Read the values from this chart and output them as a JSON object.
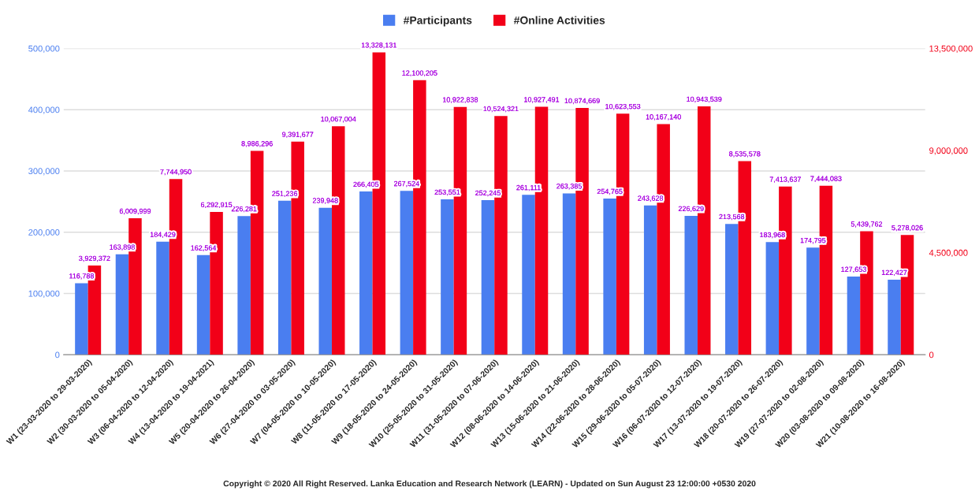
{
  "chart_data": {
    "type": "bar",
    "categories": [
      "W1 (23-03-2020 to 29-03-2020)",
      "W2 (30-03-2020 to 05-04-2020)",
      "W3 (06-04-2020 to 12-04-2020)",
      "W4 (13-04-2020 to 19-04-2021)",
      "W5 (20-04-2020 to 26-04-2020)",
      "W6 (27-04-2020 to 03-05-2020)",
      "W7 (04-05-2020 to 10-05-2020)",
      "W8 (11-05-2020 to 17-05-2020)",
      "W9 (18-05-2020 to 24-05-2020)",
      "W10 (25-05-2020 to 31-05-2020)",
      "W11 (31-05-2020 to 07-06-2020)",
      "W12 (08-06-2020 to 14-06-2020)",
      "W13 (15-06-2020 to 21-06-2020)",
      "W14 (22-06-2020 to 28-06-2020)",
      "W15 (29-06-2020 to 05-07-2020)",
      "W16 (06-07-2020 to 12-07-2020)",
      "W17 (13-07-2020 to 19-07-2020)",
      "W18 (20-07-2020 to 26-07-2020)",
      "W19 (27-07-2020 to 02-08-2020)",
      "W20 (03-08-2020 to 09-08-2020)",
      "W21 (10-08-2020 to 16-08-2020)"
    ],
    "series": [
      {
        "name": "#Participants",
        "color": "#4a7ef0",
        "values": [
          116788,
          163898,
          184429,
          162564,
          226281,
          251236,
          239948,
          266405,
          267524,
          253551,
          252245,
          261111,
          263385,
          254765,
          243628,
          226629,
          213568,
          183968,
          174795,
          127653,
          122427
        ],
        "value_labels": [
          "116,788",
          "163,898",
          "184,429",
          "162,564",
          "226,281",
          "251,236",
          "239,948",
          "266,405",
          "267,524",
          "253,551",
          "252,245",
          "261,111",
          "263,385",
          "254,765",
          "243,628",
          "226,629",
          "213,568",
          "183,968",
          "174,795",
          "127,653",
          "122,427"
        ]
      },
      {
        "name": "#Online Activities",
        "color": "#f20018",
        "axis": "y2",
        "values": [
          3929372,
          6009999,
          7744950,
          6292915,
          8986296,
          9391677,
          10067004,
          13328131,
          12100205,
          10922838,
          10524321,
          10927491,
          10874669,
          10623553,
          10167140,
          10943539,
          8535578,
          7413637,
          7444083,
          5439762,
          5278026
        ],
        "value_labels": [
          "3,929,372",
          "6,009,999",
          "7,744,950",
          "6,292,915",
          "8,986,296",
          "9,391,677",
          "10,067,004",
          "13,328,131",
          "12,100,205",
          "10,922,838",
          "10,524,321",
          "10,927,491",
          "10,874,669",
          "10,623,553",
          "10,167,140",
          "10,943,539",
          "8,535,578",
          "7,413,637",
          "7,444,083",
          "5,439,762",
          "5,278,026"
        ]
      }
    ],
    "ylim": [
      0,
      500000
    ],
    "yticks": [
      {
        "value": 0,
        "label": "0"
      },
      {
        "value": 100000,
        "label": "100,000"
      },
      {
        "value": 200000,
        "label": "200,000"
      },
      {
        "value": 300000,
        "label": "300,000"
      },
      {
        "value": 400000,
        "label": "400,000"
      },
      {
        "value": 500000,
        "label": "500,000"
      }
    ],
    "y2lim": [
      0,
      13500000
    ],
    "y2ticks": [
      {
        "value": 0,
        "label": "0"
      },
      {
        "value": 4500000,
        "label": "4,500,000"
      },
      {
        "value": 9000000,
        "label": "9,000,000"
      },
      {
        "value": 13500000,
        "label": "13,500,000"
      }
    ],
    "grid": "y",
    "legend": "top",
    "annotations": [
      "Copyright © 2020 All Right Reserved. Lanka Education and Research Network (LEARN) - Updated on Sun August 23 12:00:00 +0530 2020"
    ]
  }
}
